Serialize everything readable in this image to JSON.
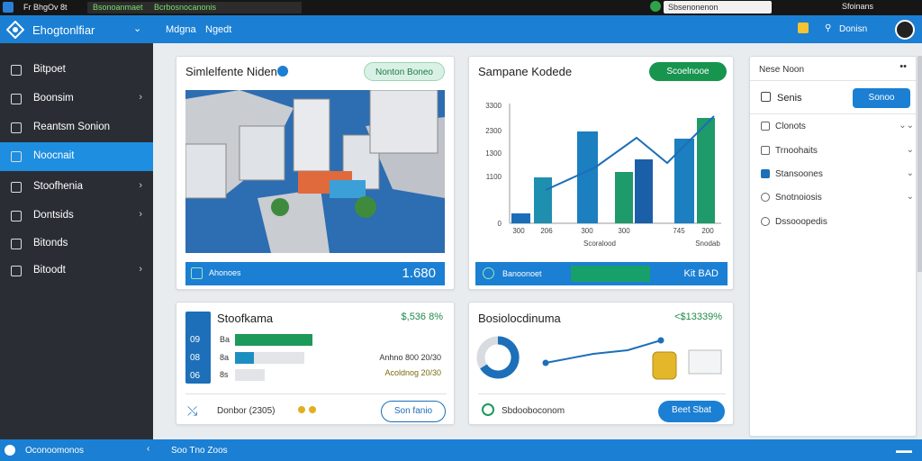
{
  "browser": {
    "tabs": [
      "Fr BhgOv 8t",
      "Bsonoanmaet",
      "Bcrbosnocanonis"
    ],
    "address": "Sbsenonenon",
    "profile": "Sfoinans"
  },
  "header": {
    "app_name": "Ehogtonlfiar",
    "nav": [
      "Mdgna",
      "Ngedt"
    ],
    "action": "Donisn"
  },
  "sidebar": {
    "items": [
      "Bitpoet",
      "Boonsim",
      "Reantsm Sonion",
      "Noocnait",
      "Stoofhenia",
      "Dontsids",
      "Bitonds",
      "Bitoodt"
    ]
  },
  "cards": [
    {
      "title": "Simlelfente Niden",
      "badge": "Nonton Boneo",
      "footer_label": "Ahonoes",
      "footer_value": "1.680"
    },
    {
      "title": "Sampane Kodede",
      "button": "Scoelnooe",
      "yticks": [
        "3300",
        "2300",
        "1300",
        "1100",
        "0"
      ],
      "xticks": [
        "300",
        "206",
        "300",
        "300",
        "745",
        "200"
      ],
      "x_labels": [
        "Scoralood",
        "Snodab"
      ],
      "footer_label": "Banoonoet",
      "footer_value": "Kit BAD"
    },
    {
      "title": "Stoofkama",
      "value": "$,536 8%",
      "row_numbers": [
        "09",
        "08",
        "06"
      ],
      "row_tags": [
        "Ba",
        "8a",
        "8s"
      ],
      "notes": [
        "Anhno 800 20/30",
        "Acoldnog 20/30"
      ],
      "footer_label": "Donbor (2305)",
      "button": "Son fanio"
    },
    {
      "title": "Bosiolocdinuma",
      "value": "<$13339%",
      "footer_label": "Sbdooboconom",
      "button": "Beet Sbat"
    }
  ],
  "panel": {
    "title": "Nese Noon",
    "active": "Senis",
    "button": "Sonoo",
    "items": [
      "Clonots",
      "Trnoohaits",
      "Stansoones",
      "Snotnoiosis",
      "Dssooopedis"
    ]
  },
  "footer": {
    "left": "Oconoomonos",
    "center": "Soo Tno Zoos"
  }
}
